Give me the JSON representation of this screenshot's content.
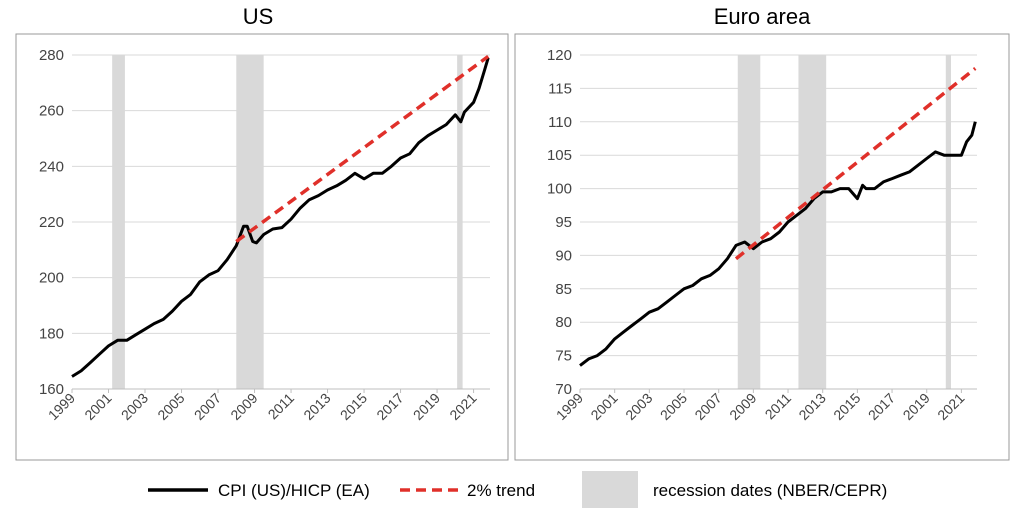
{
  "colors": {
    "cpi_line": "#000000",
    "trend_line": "#e0302a",
    "recession_shade": "#d9d9d9"
  },
  "legend": {
    "cpi_label": "CPI (US)/HICP (EA)",
    "trend_label": "2% trend",
    "recession_label": "recession dates (NBER/CEPR)"
  },
  "chart_data": [
    {
      "type": "line",
      "title": "US",
      "x_ticks": [
        "1999",
        "2001",
        "2003",
        "2005",
        "2007",
        "2009",
        "2011",
        "2013",
        "2015",
        "2017",
        "2019",
        "2021"
      ],
      "ylim": [
        160,
        280
      ],
      "y_ticks": [
        160,
        180,
        200,
        220,
        240,
        260,
        280
      ],
      "grid": "horizontal",
      "recessions": [
        [
          2001.2,
          2001.9
        ],
        [
          2008.0,
          2009.5
        ],
        [
          2020.1,
          2020.4
        ]
      ],
      "series": [
        {
          "name": "CPI (US)/HICP (EA)",
          "x": [
            1999.0,
            1999.5,
            2000.0,
            2000.5,
            2001.0,
            2001.5,
            2002.0,
            2002.5,
            2003.0,
            2003.5,
            2004.0,
            2004.5,
            2005.0,
            2005.5,
            2006.0,
            2006.5,
            2007.0,
            2007.5,
            2008.0,
            2008.4,
            2008.6,
            2008.9,
            2009.1,
            2009.5,
            2010.0,
            2010.5,
            2011.0,
            2011.5,
            2012.0,
            2012.5,
            2013.0,
            2013.5,
            2014.0,
            2014.5,
            2015.0,
            2015.5,
            2016.0,
            2016.5,
            2017.0,
            2017.5,
            2018.0,
            2018.5,
            2019.0,
            2019.5,
            2020.0,
            2020.3,
            2020.5,
            2021.0,
            2021.3,
            2021.6,
            2021.8
          ],
          "values": [
            164.5,
            166.5,
            169.5,
            172.5,
            175.5,
            177.5,
            177.5,
            179.5,
            181.5,
            183.5,
            185.0,
            188.0,
            191.5,
            194.0,
            198.5,
            201.0,
            202.5,
            206.5,
            211.5,
            218.5,
            218.5,
            213.0,
            212.5,
            215.5,
            217.5,
            218.0,
            221.0,
            225.0,
            228.0,
            229.5,
            231.5,
            233.0,
            235.0,
            237.5,
            235.5,
            237.5,
            237.5,
            240.0,
            243.0,
            244.5,
            248.5,
            251.0,
            253.0,
            255.0,
            258.5,
            256.0,
            259.5,
            263.0,
            268.0,
            274.5,
            279.0
          ]
        },
        {
          "name": "2% trend",
          "x": [
            2008.0,
            2021.8
          ],
          "values": [
            213.0,
            279.5
          ]
        }
      ]
    },
    {
      "type": "line",
      "title": "Euro area",
      "x_ticks": [
        "1999",
        "2001",
        "2003",
        "2005",
        "2007",
        "2009",
        "2011",
        "2013",
        "2015",
        "2017",
        "2019",
        "2021"
      ],
      "ylim": [
        70,
        120
      ],
      "y_ticks": [
        70,
        75,
        80,
        85,
        90,
        95,
        100,
        105,
        110,
        115,
        120
      ],
      "grid": "horizontal",
      "recessions": [
        [
          2008.1,
          2009.4
        ],
        [
          2011.6,
          2013.2
        ],
        [
          2020.1,
          2020.4
        ]
      ],
      "series": [
        {
          "name": "CPI (US)/HICP (EA)",
          "x": [
            1999.0,
            1999.5,
            2000.0,
            2000.5,
            2001.0,
            2001.5,
            2002.0,
            2002.5,
            2003.0,
            2003.5,
            2004.0,
            2004.5,
            2005.0,
            2005.5,
            2006.0,
            2006.5,
            2007.0,
            2007.5,
            2008.0,
            2008.5,
            2009.0,
            2009.5,
            2010.0,
            2010.5,
            2011.0,
            2011.5,
            2012.0,
            2012.5,
            2013.0,
            2013.5,
            2014.0,
            2014.5,
            2015.0,
            2015.3,
            2015.5,
            2016.0,
            2016.5,
            2017.0,
            2017.5,
            2018.0,
            2018.5,
            2019.0,
            2019.5,
            2020.0,
            2020.5,
            2021.0,
            2021.3,
            2021.6,
            2021.8
          ],
          "values": [
            73.5,
            74.5,
            75.0,
            76.0,
            77.5,
            78.5,
            79.5,
            80.5,
            81.5,
            82.0,
            83.0,
            84.0,
            85.0,
            85.5,
            86.5,
            87.0,
            88.0,
            89.5,
            91.5,
            92.0,
            91.0,
            92.0,
            92.5,
            93.5,
            95.0,
            96.0,
            97.0,
            98.5,
            99.5,
            99.5,
            100.0,
            100.0,
            98.5,
            100.5,
            100.0,
            100.0,
            101.0,
            101.5,
            102.0,
            102.5,
            103.5,
            104.5,
            105.5,
            105.0,
            105.0,
            105.0,
            107.0,
            108.0,
            110.0
          ]
        },
        {
          "name": "2% trend",
          "x": [
            2008.0,
            2021.8
          ],
          "values": [
            89.5,
            118.0
          ]
        }
      ]
    }
  ]
}
